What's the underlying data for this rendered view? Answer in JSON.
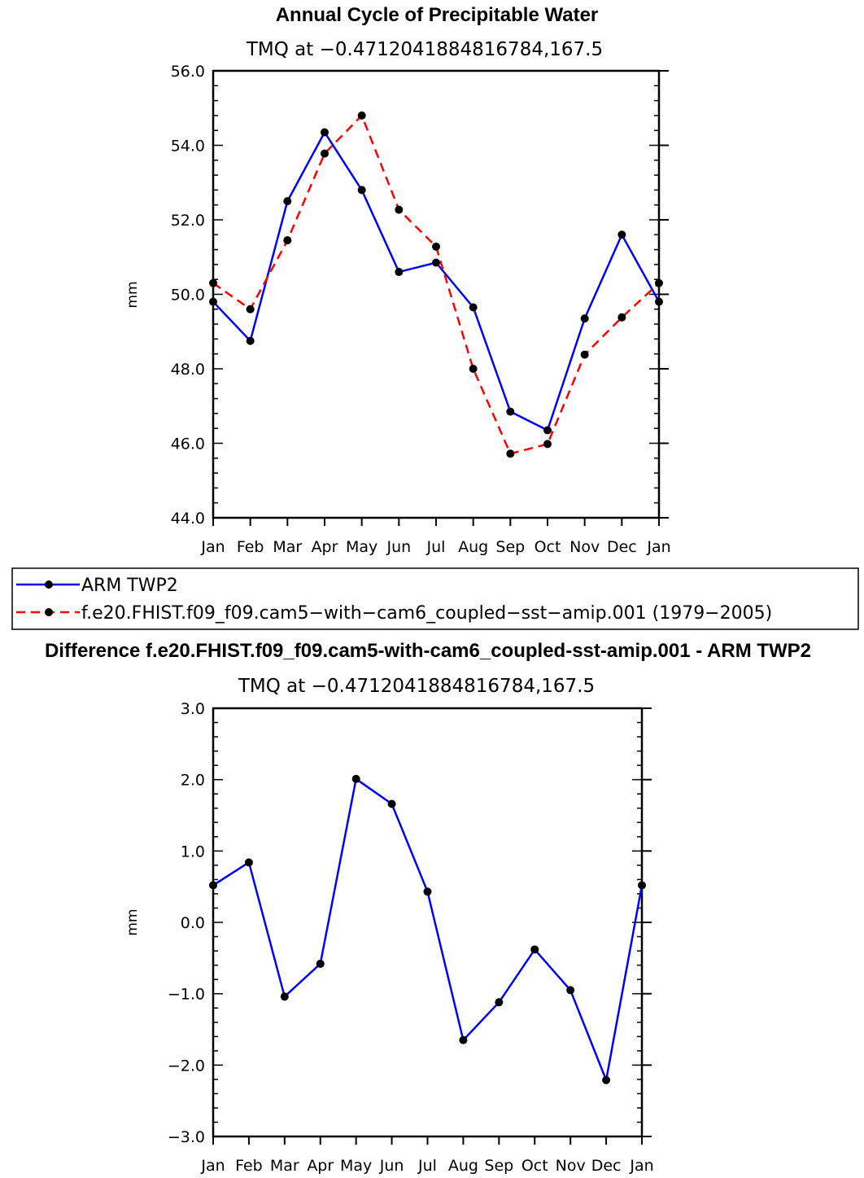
{
  "chart_data": [
    {
      "type": "line",
      "title": "Annual Cycle of Precipitable Water",
      "subtitle": "TMQ at −0.4712041884816784,167.5",
      "xlabel": "",
      "ylabel": "mm",
      "categories": [
        "Jan",
        "Feb",
        "Mar",
        "Apr",
        "May",
        "Jun",
        "Jul",
        "Aug",
        "Sep",
        "Oct",
        "Nov",
        "Dec",
        "Jan"
      ],
      "ylim": [
        44.0,
        56.0
      ],
      "yticks": [
        "44.0",
        "46.0",
        "48.0",
        "50.0",
        "52.0",
        "54.0",
        "56.0"
      ],
      "series": [
        {
          "name": "ARM TWP2",
          "color": "#0000ff",
          "style": "solid",
          "values": [
            49.8,
            48.75,
            52.5,
            54.35,
            52.8,
            50.6,
            50.85,
            49.65,
            46.85,
            46.35,
            49.35,
            51.6,
            49.8
          ]
        },
        {
          "name": "f.e20.FHIST.f09_f09.cam5−with−cam6_coupled−sst−amip.001 (1979−2005)",
          "color": "#ff0000",
          "style": "dashed",
          "values": [
            50.3,
            49.6,
            51.45,
            53.78,
            54.8,
            52.27,
            51.28,
            48.0,
            45.72,
            45.98,
            48.38,
            49.38,
            50.3
          ]
        }
      ]
    },
    {
      "type": "line",
      "title": "Difference f.e20.FHIST.f09_f09.cam5-with-cam6_coupled-sst-amip.001 - ARM TWP2",
      "subtitle": "TMQ at −0.4712041884816784,167.5",
      "xlabel": "",
      "ylabel": "mm",
      "categories": [
        "Jan",
        "Feb",
        "Mar",
        "Apr",
        "May",
        "Jun",
        "Jul",
        "Aug",
        "Sep",
        "Oct",
        "Nov",
        "Dec",
        "Jan"
      ],
      "ylim": [
        -3.0,
        3.0
      ],
      "yticks": [
        "−3.0",
        "−2.0",
        "−1.0",
        "0.0",
        "1.0",
        "2.0",
        "3.0"
      ],
      "series": [
        {
          "name": "Difference",
          "color": "#0000ff",
          "style": "solid",
          "values": [
            0.52,
            0.84,
            -1.04,
            -0.58,
            2.01,
            1.66,
            0.43,
            -1.65,
            -1.12,
            -0.38,
            -0.95,
            -2.21,
            0.52
          ]
        }
      ]
    }
  ],
  "legend": {
    "entries": [
      {
        "label": "ARM TWP2",
        "color": "#0000ff",
        "style": "solid"
      },
      {
        "label": "f.e20.FHIST.f09_f09.cam5−with−cam6_coupled−sst−amip.001 (1979−2005)",
        "color": "#ff0000",
        "style": "dashed"
      }
    ]
  }
}
